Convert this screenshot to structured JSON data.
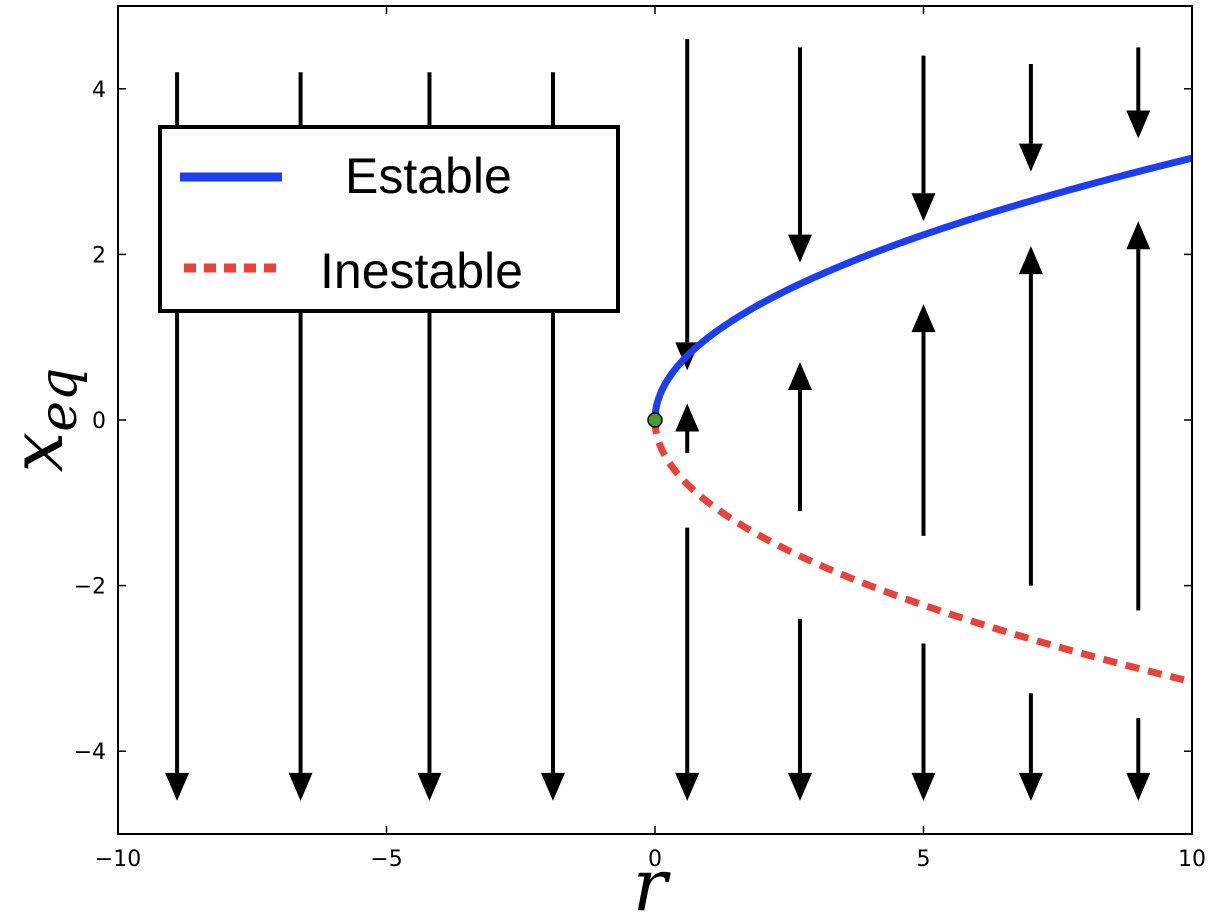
{
  "chart_data": {
    "type": "line",
    "xlabel": "r",
    "ylabel": "x",
    "ylabel_subscript": "eq",
    "xlim": [
      -10,
      10
    ],
    "ylim": [
      -5,
      5
    ],
    "xticks": [
      -10,
      -5,
      0,
      5,
      10
    ],
    "xtick_labels": [
      "−10",
      "−5",
      "0",
      "5",
      "10"
    ],
    "yticks": [
      -4,
      -2,
      0,
      2,
      4
    ],
    "ytick_labels": [
      "−4",
      "−2",
      "0",
      "2",
      "4"
    ],
    "grid": false,
    "legend_position": "top-left",
    "series": [
      {
        "name": "Estable",
        "color": "#1a3ef0",
        "style": "solid",
        "function": "sqrt(r)",
        "x_range": [
          0,
          10
        ]
      },
      {
        "name": "Inestable",
        "color": "#e8423a",
        "style": "dashed",
        "function": "-sqrt(r)",
        "x_range": [
          0,
          10
        ]
      }
    ],
    "bifurcation_point": {
      "x": 0,
      "y": 0,
      "color": "#4a9a2a"
    },
    "flow_arrows": [
      {
        "x": -8.9,
        "segments": [
          [
            4.2,
            -4.6
          ]
        ]
      },
      {
        "x": -6.6,
        "segments": [
          [
            4.2,
            -4.6
          ]
        ]
      },
      {
        "x": -4.2,
        "segments": [
          [
            4.2,
            -4.6
          ]
        ]
      },
      {
        "x": -1.9,
        "segments": [
          [
            4.2,
            -4.6
          ]
        ]
      },
      {
        "x": 0.6,
        "segments": [
          [
            4.6,
            0.6
          ],
          [
            -0.4,
            0.2
          ],
          [
            -1.3,
            -4.6
          ]
        ]
      },
      {
        "x": 2.7,
        "segments": [
          [
            4.5,
            1.9
          ],
          [
            -1.1,
            0.7
          ],
          [
            -2.4,
            -4.6
          ]
        ]
      },
      {
        "x": 5.0,
        "segments": [
          [
            4.4,
            2.4
          ],
          [
            -1.4,
            1.4
          ],
          [
            -2.7,
            -4.6
          ]
        ]
      },
      {
        "x": 7.0,
        "segments": [
          [
            4.3,
            3.0
          ],
          [
            -2.0,
            2.1
          ],
          [
            -3.3,
            -4.6
          ]
        ]
      },
      {
        "x": 9.0,
        "segments": [
          [
            4.5,
            3.4
          ],
          [
            -2.3,
            2.4
          ],
          [
            -3.6,
            -4.6
          ]
        ]
      }
    ]
  }
}
